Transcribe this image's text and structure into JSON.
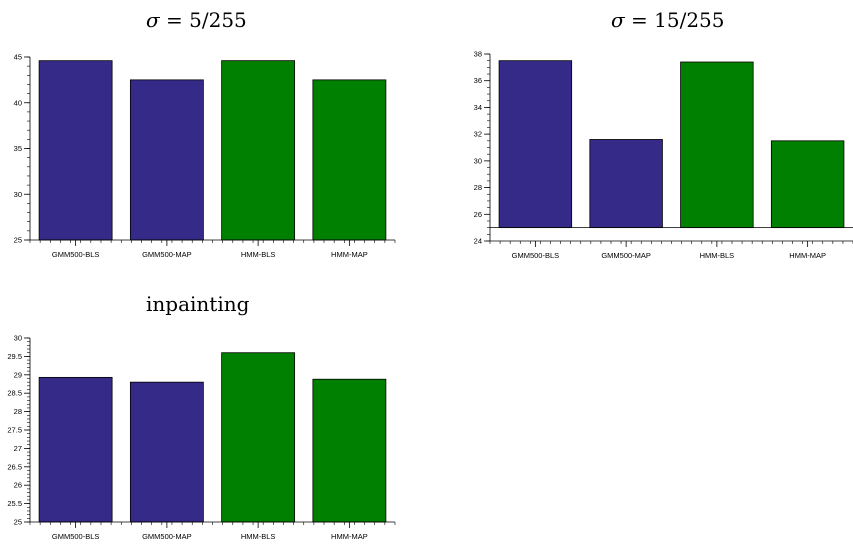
{
  "chart_data": [
    {
      "type": "bar",
      "title": "σ = 5/255",
      "title_parts": {
        "symbol": "σ",
        "rest": " = 5/255"
      },
      "categories": [
        "GMM500-BLS",
        "GMM500-MAP",
        "HMM-BLS",
        "HMM-MAP"
      ],
      "values": [
        44.6,
        42.5,
        44.6,
        42.5
      ],
      "bar_colors": [
        "#352a87",
        "#352a87",
        "#008000",
        "#008000"
      ],
      "ylim": [
        25,
        45
      ],
      "yticks": [
        25,
        30,
        35,
        40,
        45
      ],
      "yminor_step": 1,
      "xlabel": "",
      "ylabel": "",
      "grid": false,
      "legend": "none"
    },
    {
      "type": "bar",
      "title": "σ = 15/255",
      "title_parts": {
        "symbol": "σ",
        "rest": " = 15/255"
      },
      "categories": [
        "GMM500-BLS",
        "GMM500-MAP",
        "HMM-BLS",
        "HMM-MAP"
      ],
      "values": [
        37.5,
        31.6,
        37.4,
        31.5
      ],
      "bar_base": 25,
      "bar_colors": [
        "#352a87",
        "#352a87",
        "#008000",
        "#008000"
      ],
      "ylim": [
        24,
        38
      ],
      "yticks": [
        24,
        26,
        28,
        30,
        32,
        34,
        36,
        38
      ],
      "yminor_step": 0.5,
      "xlabel": "",
      "ylabel": "",
      "grid": false,
      "legend": "none"
    },
    {
      "type": "bar",
      "title": "inpainting",
      "categories": [
        "GMM500-BLS",
        "GMM500-MAP",
        "HMM-BLS",
        "HMM-MAP"
      ],
      "values": [
        28.93,
        28.8,
        29.6,
        28.88
      ],
      "bar_colors": [
        "#352a87",
        "#352a87",
        "#008000",
        "#008000"
      ],
      "ylim": [
        25,
        30
      ],
      "yticks": [
        25,
        25.5,
        26,
        26.5,
        27,
        27.5,
        28,
        28.5,
        29,
        29.5,
        30
      ],
      "yminor_step": 0.1,
      "xlabel": "",
      "ylabel": "",
      "grid": false,
      "legend": "none"
    }
  ]
}
